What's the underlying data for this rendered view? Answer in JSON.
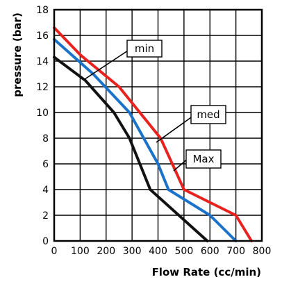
{
  "chart_data": {
    "type": "line",
    "xlabel": "Flow Rate (cc/min)",
    "ylabel": "pressure (bar)",
    "xlim": [
      0,
      800
    ],
    "ylim": [
      0,
      18
    ],
    "x_ticks": [
      "0",
      "100",
      "200",
      "300",
      "400",
      "500",
      "600",
      "700",
      "800"
    ],
    "y_ticks": [
      "0",
      "2",
      "4",
      "6",
      "8",
      "10",
      "12",
      "14",
      "16",
      "18"
    ],
    "grid": true,
    "series": [
      {
        "name": "min",
        "color": "#111111",
        "points": [
          [
            0,
            14.3
          ],
          [
            120,
            12.5
          ],
          [
            230,
            10.0
          ],
          [
            290,
            8.0
          ],
          [
            370,
            4.0
          ],
          [
            590,
            0.0
          ]
        ]
      },
      {
        "name": "med",
        "color": "#1a73c8",
        "points": [
          [
            0,
            15.7
          ],
          [
            150,
            13.0
          ],
          [
            290,
            10.0
          ],
          [
            400,
            6.0
          ],
          [
            440,
            4.0
          ],
          [
            600,
            2.0
          ],
          [
            700,
            0.0
          ]
        ]
      },
      {
        "name": "Max",
        "color": "#e8231f",
        "points": [
          [
            0,
            16.6
          ],
          [
            100,
            14.5
          ],
          [
            250,
            12.0
          ],
          [
            330,
            10.0
          ],
          [
            410,
            8.0
          ],
          [
            500,
            4.0
          ],
          [
            700,
            2.0
          ],
          [
            760,
            0.0
          ]
        ]
      }
    ],
    "annotations": [
      {
        "text": "min",
        "series": "min"
      },
      {
        "text": "med",
        "series": "med"
      },
      {
        "text": "Max",
        "series": "Max"
      }
    ]
  }
}
